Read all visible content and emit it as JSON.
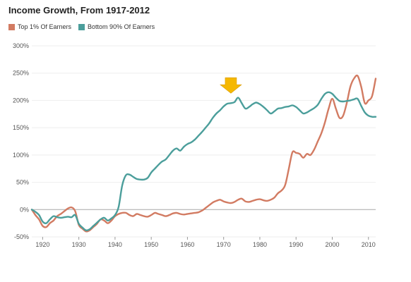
{
  "chart_data": {
    "type": "line",
    "title": "Income Growth, From 1917-2012",
    "xlabel": "",
    "ylabel": "",
    "xlim": [
      1917,
      2012
    ],
    "ylim": [
      -50,
      300
    ],
    "x_ticks": [
      1920,
      1930,
      1940,
      1950,
      1960,
      1970,
      1980,
      1990,
      2000,
      2010
    ],
    "x_tick_labels": [
      "1920",
      "1930",
      "1940",
      "1950",
      "1960",
      "1970",
      "1980",
      "1990",
      "2000",
      "2010"
    ],
    "y_ticks": [
      -50,
      0,
      50,
      100,
      150,
      200,
      250,
      300
    ],
    "y_tick_labels": [
      "-50%",
      "0%",
      "50%",
      "100%",
      "150%",
      "200%",
      "250%",
      "300%"
    ],
    "grid": "horizontal",
    "legend_position": "top-left",
    "annotation": {
      "type": "arrow-down",
      "x": 1972,
      "y": 208,
      "color": "#f5b800"
    },
    "series": [
      {
        "name": "Top 1% Of Earners",
        "color": "#d27b62",
        "x": [
          1917,
          1918,
          1919,
          1920,
          1921,
          1922,
          1923,
          1924,
          1925,
          1926,
          1927,
          1928,
          1929,
          1930,
          1931,
          1932,
          1933,
          1934,
          1935,
          1936,
          1937,
          1938,
          1939,
          1940,
          1941,
          1942,
          1943,
          1944,
          1945,
          1946,
          1947,
          1948,
          1949,
          1950,
          1951,
          1952,
          1953,
          1954,
          1955,
          1956,
          1957,
          1958,
          1959,
          1960,
          1961,
          1962,
          1963,
          1964,
          1965,
          1966,
          1967,
          1968,
          1969,
          1970,
          1971,
          1972,
          1973,
          1974,
          1975,
          1976,
          1977,
          1978,
          1979,
          1980,
          1981,
          1982,
          1983,
          1984,
          1985,
          1986,
          1987,
          1988,
          1989,
          1990,
          1991,
          1992,
          1993,
          1994,
          1995,
          1996,
          1997,
          1998,
          1999,
          2000,
          2001,
          2002,
          2003,
          2004,
          2005,
          2006,
          2007,
          2008,
          2009,
          2010,
          2011,
          2012
        ],
        "y": [
          0,
          -10,
          -18,
          -30,
          -32,
          -25,
          -20,
          -12,
          -8,
          -3,
          2,
          4,
          -3,
          -28,
          -35,
          -40,
          -38,
          -32,
          -26,
          -18,
          -20,
          -25,
          -20,
          -12,
          -8,
          -6,
          -6,
          -10,
          -12,
          -8,
          -10,
          -12,
          -13,
          -10,
          -6,
          -8,
          -10,
          -12,
          -10,
          -7,
          -6,
          -8,
          -9,
          -8,
          -7,
          -6,
          -5,
          -2,
          3,
          8,
          13,
          16,
          18,
          15,
          13,
          12,
          14,
          18,
          20,
          15,
          14,
          16,
          18,
          19,
          17,
          16,
          18,
          22,
          30,
          35,
          45,
          75,
          105,
          104,
          102,
          95,
          102,
          100,
          110,
          125,
          140,
          160,
          185,
          203,
          185,
          168,
          172,
          195,
          225,
          240,
          245,
          225,
          195,
          200,
          208,
          240
        ]
      },
      {
        "name": "Bottom 90% Of Earners",
        "color": "#4b9e9b",
        "x": [
          1917,
          1918,
          1919,
          1920,
          1921,
          1922,
          1923,
          1924,
          1925,
          1926,
          1927,
          1928,
          1929,
          1930,
          1931,
          1932,
          1933,
          1934,
          1935,
          1936,
          1937,
          1938,
          1939,
          1940,
          1941,
          1942,
          1943,
          1944,
          1945,
          1946,
          1947,
          1948,
          1949,
          1950,
          1951,
          1952,
          1953,
          1954,
          1955,
          1956,
          1957,
          1958,
          1959,
          1960,
          1961,
          1962,
          1963,
          1964,
          1965,
          1966,
          1967,
          1968,
          1969,
          1970,
          1971,
          1972,
          1973,
          1974,
          1975,
          1976,
          1977,
          1978,
          1979,
          1980,
          1981,
          1982,
          1983,
          1984,
          1985,
          1986,
          1987,
          1988,
          1989,
          1990,
          1991,
          1992,
          1993,
          1994,
          1995,
          1996,
          1997,
          1998,
          1999,
          2000,
          2001,
          2002,
          2003,
          2004,
          2005,
          2006,
          2007,
          2008,
          2009,
          2010,
          2011,
          2012
        ],
        "y": [
          0,
          -4,
          -10,
          -22,
          -25,
          -18,
          -12,
          -14,
          -15,
          -14,
          -13,
          -14,
          -10,
          -26,
          -33,
          -38,
          -36,
          -30,
          -24,
          -18,
          -15,
          -20,
          -16,
          -10,
          5,
          45,
          63,
          64,
          60,
          56,
          55,
          55,
          58,
          68,
          75,
          82,
          88,
          92,
          100,
          108,
          112,
          108,
          115,
          120,
          123,
          128,
          135,
          142,
          150,
          158,
          168,
          176,
          182,
          189,
          194,
          195,
          197,
          205,
          195,
          185,
          188,
          193,
          196,
          193,
          188,
          182,
          176,
          180,
          185,
          186,
          188,
          189,
          191,
          188,
          182,
          176,
          178,
          182,
          186,
          192,
          203,
          212,
          215,
          212,
          205,
          199,
          198,
          199,
          200,
          202,
          203,
          190,
          178,
          172,
          170,
          170
        ]
      }
    ]
  }
}
